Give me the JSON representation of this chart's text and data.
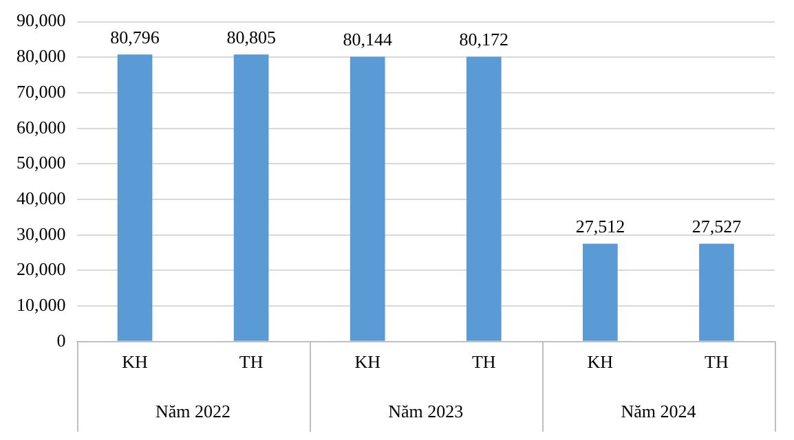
{
  "chart_data": {
    "type": "bar",
    "categories": [
      "KH",
      "TH",
      "KH",
      "TH",
      "KH",
      "TH"
    ],
    "values": [
      80796,
      80805,
      80144,
      80172,
      27512,
      27527
    ],
    "color": "#5b9bd5",
    "ylim": [
      0,
      90000
    ],
    "yticks": [
      {
        "value": 0,
        "label": "0"
      },
      {
        "value": 10000,
        "label": "10,000"
      },
      {
        "value": 20000,
        "label": "20,000"
      },
      {
        "value": 30000,
        "label": "30,000"
      },
      {
        "value": 40000,
        "label": "40,000"
      },
      {
        "value": 50000,
        "label": "50,000"
      },
      {
        "value": 60000,
        "label": "60,000"
      },
      {
        "value": 70000,
        "label": "70,000"
      },
      {
        "value": 80000,
        "label": "80,000"
      },
      {
        "value": 90000,
        "label": "90,000"
      }
    ],
    "grid": "y",
    "value_labels": [
      "80,796",
      "80,805",
      "80,144",
      "80,172",
      "27,512",
      "27,527"
    ],
    "annotations": [
      "Năm 2022",
      "Năm 2023",
      "Năm 2024"
    ]
  }
}
